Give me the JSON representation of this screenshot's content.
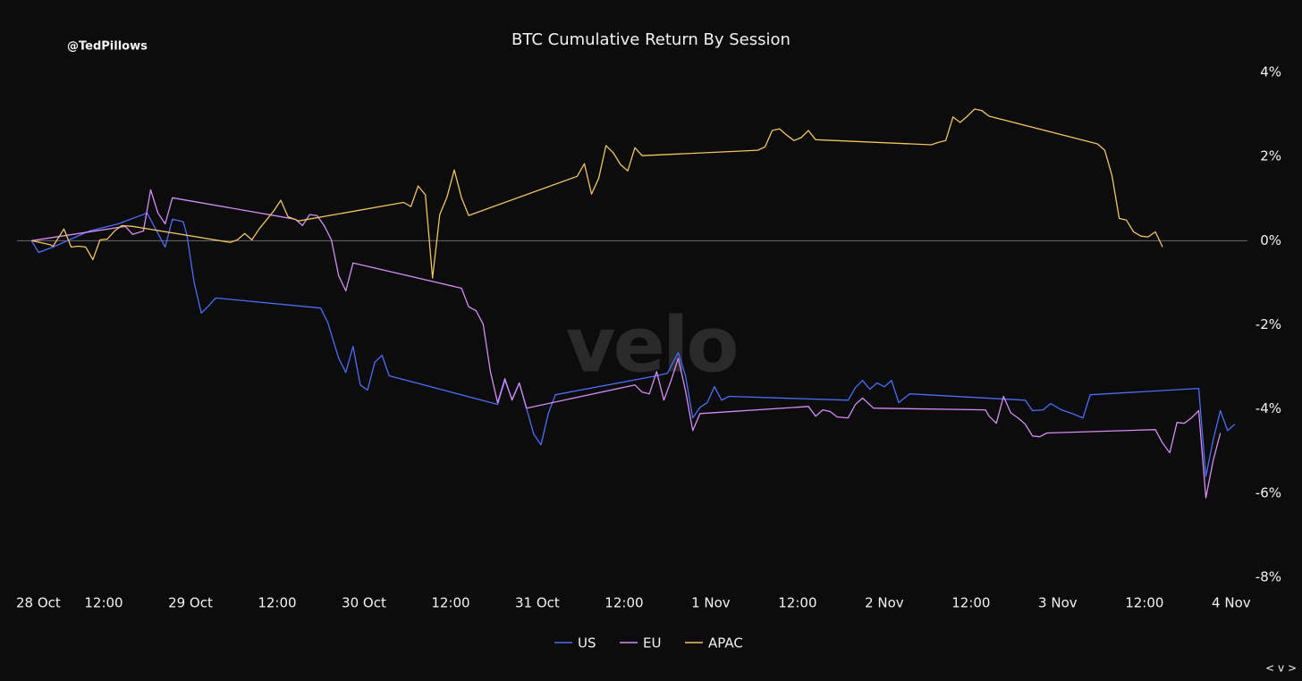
{
  "chart_data": {
    "type": "line",
    "title": "BTC Cumulative Return By Session",
    "attribution": "@TedPillows",
    "watermark": "velo",
    "corner_label": "< v >",
    "xlim": [
      "28 Oct 00:00",
      "4 Nov 02:00"
    ],
    "xticks": [
      {
        "value": "28 Oct 00:00",
        "label": "28 Oct"
      },
      {
        "value": "28 Oct 12:00",
        "label": "12:00"
      },
      {
        "value": "29 Oct 00:00",
        "label": "29 Oct"
      },
      {
        "value": "29 Oct 12:00",
        "label": "12:00"
      },
      {
        "value": "30 Oct 00:00",
        "label": "30 Oct"
      },
      {
        "value": "30 Oct 12:00",
        "label": "12:00"
      },
      {
        "value": "31 Oct 00:00",
        "label": "31 Oct"
      },
      {
        "value": "31 Oct 12:00",
        "label": "12:00"
      },
      {
        "value": "1 Nov 00:00",
        "label": "1 Nov"
      },
      {
        "value": "1 Nov 12:00",
        "label": "12:00"
      },
      {
        "value": "2 Nov 00:00",
        "label": "2 Nov"
      },
      {
        "value": "2 Nov 12:00",
        "label": "12:00"
      },
      {
        "value": "3 Nov 00:00",
        "label": "3 Nov"
      },
      {
        "value": "3 Nov 12:00",
        "label": "12:00"
      },
      {
        "value": "4 Nov 00:00",
        "label": "4 Nov"
      }
    ],
    "ylim": [
      -8,
      4
    ],
    "yticks": [
      {
        "value": -8,
        "label": "-8%"
      },
      {
        "value": -6,
        "label": "-6%"
      },
      {
        "value": -4,
        "label": "-4%"
      },
      {
        "value": -2,
        "label": "-2%"
      },
      {
        "value": 0,
        "label": "0%"
      },
      {
        "value": 2,
        "label": "2%"
      },
      {
        "value": 4,
        "label": "4%"
      }
    ],
    "grid": false,
    "zero_line": true,
    "legend": "bottom",
    "series": [
      {
        "name": "US",
        "color": "#4b6ef5",
        "x": [
          "28 Oct 02:00",
          "28 Oct 03:00",
          "28 Oct 05:00",
          "28 Oct 10:00",
          "28 Oct 14:00",
          "28 Oct 18:00",
          "28 Oct 20:30",
          "28 Oct 21:30",
          "28 Oct 23:00",
          "28 Oct 23:30",
          "29 Oct 00:30",
          "29 Oct 01:30",
          "29 Oct 02:30",
          "29 Oct 03:30",
          "29 Oct 18:00",
          "29 Oct 19:00",
          "29 Oct 20:30",
          "29 Oct 21:30",
          "29 Oct 22:30",
          "29 Oct 23:30",
          "30 Oct 00:30",
          "30 Oct 01:30",
          "30 Oct 02:30",
          "30 Oct 03:30",
          "30 Oct 18:30",
          "30 Oct 19:30",
          "30 Oct 20:30",
          "30 Oct 21:30",
          "30 Oct 23:30",
          "31 Oct 00:30",
          "31 Oct 01:30",
          "31 Oct 02:30",
          "31 Oct 16:30",
          "31 Oct 18:00",
          "31 Oct 19:30",
          "31 Oct 20:30",
          "31 Oct 21:30",
          "31 Oct 22:30",
          "31 Oct 23:30",
          "1 Nov 00:30",
          "1 Nov 01:30",
          "1 Nov 02:30",
          "1 Nov 19:00",
          "1 Nov 20:00",
          "1 Nov 21:00",
          "1 Nov 22:00",
          "1 Nov 23:00",
          "2 Nov 00:00",
          "2 Nov 01:00",
          "2 Nov 02:00",
          "2 Nov 03:30",
          "2 Nov 19:30",
          "2 Nov 20:30",
          "2 Nov 22:00",
          "2 Nov 23:00",
          "3 Nov 00:30",
          "3 Nov 02:00",
          "3 Nov 03:30",
          "3 Nov 04:30",
          "3 Nov 19:30",
          "3 Nov 20:30",
          "3 Nov 21:30",
          "3 Nov 22:30",
          "3 Nov 23:30",
          "4 Nov 00:30"
        ],
        "values": [
          0,
          -0.28,
          -0.15,
          0.23,
          0.4,
          0.66,
          -0.15,
          0.51,
          0.45,
          0.15,
          -0.98,
          -1.72,
          -1.55,
          -1.36,
          -1.6,
          -1.94,
          -2.79,
          -3.13,
          -2.51,
          -3.43,
          -3.55,
          -2.89,
          -2.72,
          -3.21,
          -3.89,
          -3.32,
          -3.77,
          -3.38,
          -4.6,
          -4.85,
          -4.11,
          -3.66,
          -3.21,
          -3.15,
          -2.66,
          -3.21,
          -4.21,
          -3.96,
          -3.85,
          -3.47,
          -3.79,
          -3.7,
          -3.79,
          -3.49,
          -3.32,
          -3.53,
          -3.38,
          -3.47,
          -3.32,
          -3.85,
          -3.64,
          -3.79,
          -4.04,
          -4.02,
          -3.87,
          -4.02,
          -4.11,
          -4.21,
          -3.66,
          -3.51,
          -5.6,
          -4.74,
          -4.04,
          -4.51,
          -4.36
        ]
      },
      {
        "name": "EU",
        "color": "#d68cf5",
        "x": [
          "28 Oct 02:00",
          "28 Oct 15:00",
          "28 Oct 16:00",
          "28 Oct 17:30",
          "28 Oct 18:30",
          "28 Oct 19:30",
          "28 Oct 20:30",
          "28 Oct 21:30",
          "29 Oct 14:30",
          "29 Oct 15:30",
          "29 Oct 16:30",
          "29 Oct 17:30",
          "29 Oct 18:30",
          "29 Oct 19:30",
          "29 Oct 20:30",
          "29 Oct 21:30",
          "29 Oct 22:30",
          "30 Oct 13:30",
          "30 Oct 14:30",
          "30 Oct 15:30",
          "30 Oct 16:30",
          "30 Oct 17:30",
          "30 Oct 18:30",
          "30 Oct 19:30",
          "30 Oct 20:30",
          "30 Oct 21:30",
          "30 Oct 22:30",
          "31 Oct 13:30",
          "31 Oct 14:30",
          "31 Oct 15:30",
          "31 Oct 16:30",
          "31 Oct 17:30",
          "31 Oct 18:30",
          "31 Oct 19:30",
          "31 Oct 20:30",
          "31 Oct 21:30",
          "31 Oct 22:30",
          "1 Nov 13:30",
          "1 Nov 14:30",
          "1 Nov 15:30",
          "1 Nov 16:30",
          "1 Nov 17:30",
          "1 Nov 19:00",
          "1 Nov 20:00",
          "1 Nov 21:00",
          "1 Nov 22:30",
          "2 Nov 14:00",
          "2 Nov 14:30",
          "2 Nov 15:30",
          "2 Nov 16:30",
          "2 Nov 17:30",
          "2 Nov 18:30",
          "2 Nov 19:30",
          "2 Nov 20:30",
          "2 Nov 21:30",
          "2 Nov 22:30",
          "3 Nov 13:30",
          "3 Nov 14:30",
          "3 Nov 15:30",
          "3 Nov 16:30",
          "3 Nov 17:30",
          "3 Nov 18:30",
          "3 Nov 19:30",
          "3 Nov 20:30",
          "3 Nov 21:30",
          "3 Nov 22:30"
        ],
        "values": [
          0,
          0.34,
          0.15,
          0.23,
          1.21,
          0.66,
          0.4,
          1.02,
          0.51,
          0.36,
          0.62,
          0.6,
          0.36,
          0.02,
          -0.83,
          -1.19,
          -0.53,
          -1.13,
          -1.57,
          -1.66,
          -1.98,
          -3.11,
          -3.85,
          -3.28,
          -3.79,
          -3.38,
          -3.98,
          -3.43,
          -3.6,
          -3.64,
          -3.11,
          -3.79,
          -3.32,
          -2.79,
          -3.57,
          -4.51,
          -4.11,
          -3.94,
          -4.17,
          -4.02,
          -4.06,
          -4.19,
          -4.21,
          -3.89,
          -3.74,
          -3.98,
          -4.02,
          -4.17,
          -4.34,
          -3.7,
          -4.09,
          -4.21,
          -4.36,
          -4.64,
          -4.66,
          -4.57,
          -4.49,
          -4.81,
          -5.04,
          -4.32,
          -4.34,
          -4.21,
          -4.04,
          -6.11,
          -5.23,
          -4.57
        ]
      },
      {
        "name": "APAC",
        "color": "#f2c463",
        "x": [
          "28 Oct 02:00",
          "28 Oct 04:30",
          "28 Oct 05:00",
          "28 Oct 06:30",
          "28 Oct 07:30",
          "28 Oct 08:30",
          "28 Oct 09:30",
          "28 Oct 10:30",
          "28 Oct 11:30",
          "28 Oct 12:30",
          "28 Oct 13:30",
          "28 Oct 14:30",
          "28 Oct 16:00",
          "29 Oct 05:30",
          "29 Oct 06:30",
          "29 Oct 07:30",
          "29 Oct 08:30",
          "29 Oct 09:30",
          "29 Oct 10:30",
          "29 Oct 11:30",
          "29 Oct 12:30",
          "29 Oct 13:30",
          "29 Oct 15:00",
          "30 Oct 05:30",
          "30 Oct 06:30",
          "30 Oct 07:30",
          "30 Oct 08:30",
          "30 Oct 09:30",
          "30 Oct 10:30",
          "30 Oct 11:30",
          "30 Oct 12:30",
          "30 Oct 13:30",
          "30 Oct 14:30",
          "31 Oct 05:30",
          "31 Oct 06:30",
          "31 Oct 07:30",
          "31 Oct 08:30",
          "31 Oct 09:30",
          "31 Oct 10:30",
          "31 Oct 11:30",
          "31 Oct 12:30",
          "31 Oct 13:30",
          "31 Oct 14:30",
          "1 Nov 06:30",
          "1 Nov 07:30",
          "1 Nov 08:30",
          "1 Nov 09:30",
          "1 Nov 10:30",
          "1 Nov 11:30",
          "1 Nov 12:30",
          "1 Nov 13:30",
          "1 Nov 14:30",
          "2 Nov 06:30",
          "2 Nov 07:30",
          "2 Nov 08:30",
          "2 Nov 09:30",
          "2 Nov 10:30",
          "2 Nov 11:30",
          "2 Nov 12:30",
          "2 Nov 13:30",
          "2 Nov 14:30",
          "3 Nov 05:30",
          "3 Nov 06:30",
          "3 Nov 07:30",
          "3 Nov 08:30",
          "3 Nov 09:30",
          "3 Nov 10:30",
          "3 Nov 11:30",
          "3 Nov 12:30",
          "3 Nov 13:30",
          "3 Nov 14:30"
        ],
        "values": [
          0,
          -0.09,
          -0.13,
          0.28,
          -0.15,
          -0.13,
          -0.15,
          -0.45,
          0.02,
          0.04,
          0.23,
          0.36,
          0.34,
          -0.04,
          0.02,
          0.17,
          0.02,
          0.28,
          0.49,
          0.7,
          0.96,
          0.57,
          0.47,
          0.91,
          0.81,
          1.3,
          1.09,
          -0.89,
          0.62,
          1.04,
          1.68,
          1.02,
          0.6,
          1.53,
          1.83,
          1.11,
          1.49,
          2.26,
          2.09,
          1.81,
          1.66,
          2.21,
          2.02,
          2.15,
          2.23,
          2.62,
          2.66,
          2.51,
          2.38,
          2.45,
          2.62,
          2.4,
          2.28,
          2.34,
          2.38,
          2.94,
          2.81,
          2.96,
          3.13,
          3.09,
          2.96,
          2.3,
          2.15,
          1.55,
          0.53,
          0.49,
          0.21,
          0.11,
          0.09,
          0.21,
          -0.15
        ]
      }
    ]
  }
}
